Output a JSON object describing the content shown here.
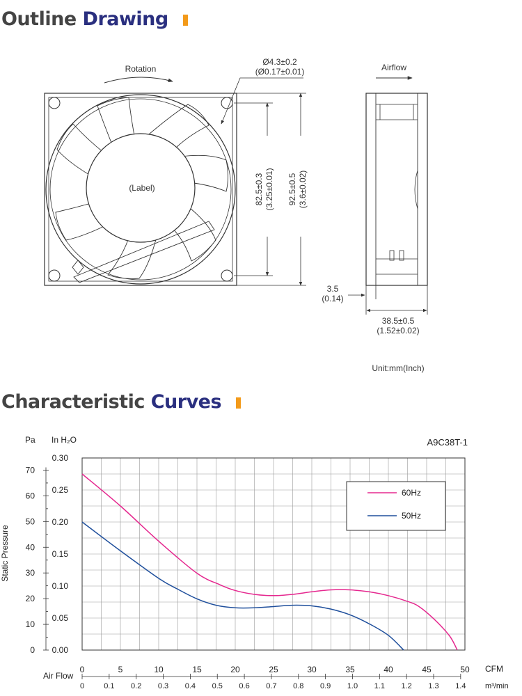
{
  "outline": {
    "title_part1": "Outline",
    "title_part2": "Drawing",
    "rotation_label": "Rotation",
    "hole_dim_mm": "Ø4.3±0.2",
    "hole_dim_in": "(Ø0.17±0.01)",
    "label_text": "(Label)",
    "hole_spacing_mm": "82.5±0.3",
    "hole_spacing_in": "(3.25±0.01)",
    "frame_size_mm": "92.5±0.5",
    "frame_size_in": "(3.6±0.02)",
    "airflow_label": "Airflow",
    "flange_mm": "3.5",
    "flange_in": "(0.14)",
    "depth_mm": "38.5±0.5",
    "depth_in": "(1.52±0.02)",
    "unit_note": "Unit:mm(Inch)",
    "accent_color": "#f39a1a"
  },
  "curves": {
    "title_part1": "Characteristic",
    "title_part2": "Curves",
    "model": "A9C38T-1"
  },
  "chart_data": {
    "type": "line",
    "title": "A9C38T-1",
    "ylabel": "Static Pressure",
    "y_unit_left": "Pa",
    "y_unit_right": "In H₂O",
    "y_ticks_pa": [
      "0",
      "10",
      "20",
      "30",
      "40",
      "50",
      "60",
      "70"
    ],
    "y_ticks_inh2o": [
      "0.00",
      "0.05",
      "0.10",
      "0.15",
      "0.20",
      "0.25",
      "0.30"
    ],
    "xlabel": "Air Flow",
    "x_unit_cfm": "CFM",
    "x_unit_m3": "m³/min",
    "x_ticks_cfm": [
      "0",
      "5",
      "10",
      "15",
      "20",
      "25",
      "30",
      "35",
      "40",
      "45",
      "50"
    ],
    "x_ticks_m3": [
      "0",
      "0.1",
      "0.2",
      "0.3",
      "0.4",
      "0.5",
      "0.6",
      "0.7",
      "0.8",
      "0.9",
      "1.0",
      "1.1",
      "1.2",
      "1.3",
      "1.4"
    ],
    "xlim_cfm": [
      0,
      50
    ],
    "ylim_inh2o": [
      0,
      0.3
    ],
    "grid": true,
    "legend_position": "top-right",
    "series": [
      {
        "name": "60Hz",
        "color": "#e5288f",
        "points": [
          [
            0,
            0.275
          ],
          [
            5,
            0.225
          ],
          [
            10,
            0.17
          ],
          [
            15,
            0.12
          ],
          [
            18,
            0.102
          ],
          [
            20,
            0.093
          ],
          [
            22.5,
            0.087
          ],
          [
            25,
            0.085
          ],
          [
            27.5,
            0.087
          ],
          [
            30,
            0.091
          ],
          [
            32.5,
            0.094
          ],
          [
            35,
            0.094
          ],
          [
            37.5,
            0.091
          ],
          [
            40,
            0.085
          ],
          [
            42.5,
            0.076
          ],
          [
            44,
            0.068
          ],
          [
            46,
            0.048
          ],
          [
            48,
            0.022
          ],
          [
            49,
            0.0
          ]
        ]
      },
      {
        "name": "50Hz",
        "color": "#1f4f9c",
        "points": [
          [
            0,
            0.2
          ],
          [
            5,
            0.155
          ],
          [
            10,
            0.112
          ],
          [
            12.5,
            0.095
          ],
          [
            15,
            0.08
          ],
          [
            17.5,
            0.07
          ],
          [
            20,
            0.066
          ],
          [
            22.5,
            0.066
          ],
          [
            25,
            0.068
          ],
          [
            27.5,
            0.07
          ],
          [
            30,
            0.069
          ],
          [
            32.5,
            0.064
          ],
          [
            35,
            0.055
          ],
          [
            37.5,
            0.041
          ],
          [
            40,
            0.023
          ],
          [
            42,
            0.0
          ]
        ]
      }
    ]
  }
}
